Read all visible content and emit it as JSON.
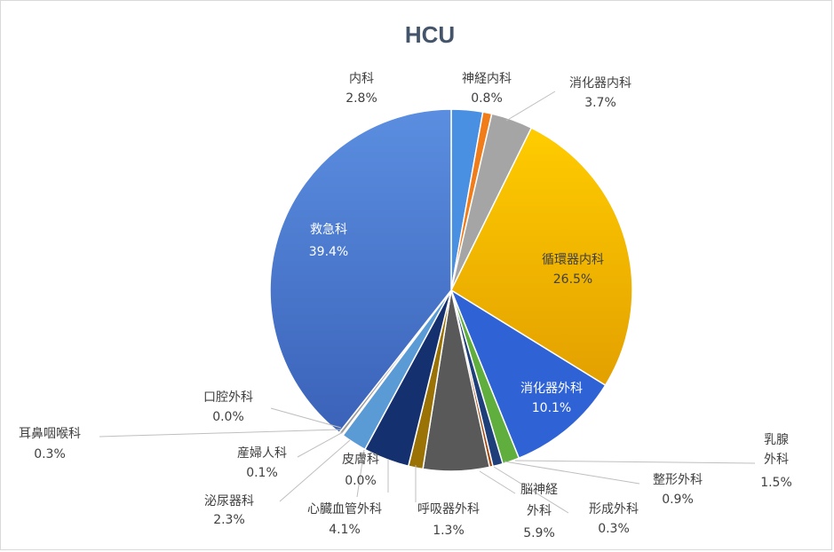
{
  "chart_data": {
    "type": "pie",
    "title": "HCU",
    "slices": [
      {
        "label": "内科",
        "value": 2.8,
        "pct": "2.8%",
        "color": "#4a90e2"
      },
      {
        "label": "神経内科",
        "value": 0.8,
        "pct": "0.8%",
        "color": "#f07c1a"
      },
      {
        "label": "消化器内科",
        "value": 3.7,
        "pct": "3.7%",
        "color": "#a5a5a5"
      },
      {
        "label": "循環器内科",
        "value": 26.5,
        "pct": "26.5%",
        "color": "#f5b800"
      },
      {
        "label": "消化器外科",
        "value": 10.1,
        "pct": "10.1%",
        "color": "#2f62d4"
      },
      {
        "label": "乳腺外科",
        "value": 1.5,
        "pct": "1.5%",
        "color": "#5fae3e"
      },
      {
        "label": "整形外科",
        "value": 0.9,
        "pct": "0.9%",
        "color": "#1f3f7a"
      },
      {
        "label": "形成外科",
        "value": 0.3,
        "pct": "0.3%",
        "color": "#a34a12"
      },
      {
        "label": "脳神経外科",
        "value": 5.9,
        "pct": "5.9%",
        "color": "#595959"
      },
      {
        "label": "呼吸器外科",
        "value": 1.3,
        "pct": "1.3%",
        "color": "#9a7206"
      },
      {
        "label": "皮膚科",
        "value": 0.0,
        "pct": "0.0%",
        "color": "#1d3b8a"
      },
      {
        "label": "心臓血管外科",
        "value": 4.1,
        "pct": "4.1%",
        "color": "#15306e"
      },
      {
        "label": "泌尿器科",
        "value": 2.3,
        "pct": "2.3%",
        "color": "#5b9bd5"
      },
      {
        "label": "産婦人科",
        "value": 0.1,
        "pct": "0.1%",
        "color": "#ed7d31"
      },
      {
        "label": "耳鼻咽喉科",
        "value": 0.3,
        "pct": "0.3%",
        "color": "#9d9d9d"
      },
      {
        "label": "口腔外科",
        "value": 0.0,
        "pct": "0.0%",
        "color": "#ffc000"
      },
      {
        "label": "救急科",
        "value": 39.4,
        "pct": "39.4%",
        "color": "#4b78cf"
      }
    ]
  }
}
